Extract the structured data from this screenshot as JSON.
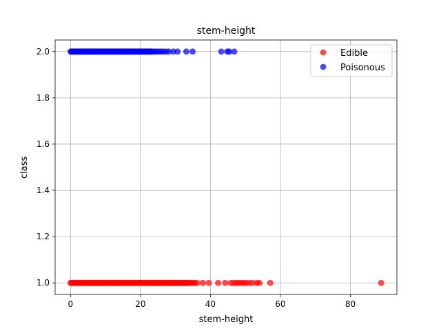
{
  "chart_data": {
    "type": "scatter",
    "title": "stem-height",
    "xlabel": "stem-height",
    "ylabel": "class",
    "xlim": [
      -4.4,
      93.3
    ],
    "ylim": [
      0.95,
      2.05
    ],
    "xticks": [
      0,
      20,
      40,
      60,
      80
    ],
    "xtick_labels": [
      "0",
      "20",
      "40",
      "60",
      "80"
    ],
    "yticks": [
      1.0,
      1.2,
      1.4,
      1.6,
      1.8,
      2.0
    ],
    "ytick_labels": [
      "1.0",
      "1.2",
      "1.4",
      "1.6",
      "1.8",
      "2.0"
    ],
    "grid": true,
    "legend_position": "upper right",
    "series": [
      {
        "name": "Edible",
        "color": "#ff0000",
        "y": 1.0,
        "x": [
          0,
          0.3,
          0.6,
          0.9,
          1.2,
          1.5,
          1.8,
          2.1,
          2.4,
          2.7,
          3.0,
          3.3,
          3.6,
          3.9,
          4.2,
          4.5,
          4.8,
          5.1,
          5.4,
          5.7,
          6.0,
          6.3,
          6.6,
          6.9,
          7.2,
          7.5,
          7.8,
          8.1,
          8.4,
          8.7,
          9.0,
          9.3,
          9.6,
          9.9,
          10.2,
          10.5,
          10.8,
          11.1,
          11.4,
          11.7,
          12.0,
          12.3,
          12.6,
          12.9,
          13.2,
          13.5,
          13.8,
          14.1,
          14.4,
          14.7,
          15.0,
          15.3,
          15.6,
          15.9,
          16.2,
          16.5,
          16.8,
          17.1,
          17.4,
          17.7,
          18.0,
          18.3,
          18.6,
          18.9,
          19.2,
          19.5,
          19.8,
          20.1,
          20.4,
          20.7,
          21.0,
          21.3,
          21.6,
          21.9,
          22.2,
          22.5,
          22.8,
          23.1,
          23.4,
          23.7,
          24.0,
          24.3,
          24.6,
          24.9,
          25.2,
          25.5,
          25.8,
          26.1,
          26.4,
          26.7,
          27.0,
          27.3,
          27.6,
          27.9,
          28.2,
          28.5,
          28.8,
          29.1,
          29.4,
          29.7,
          30.0,
          30.3,
          30.6,
          30.9,
          31.2,
          31.5,
          31.8,
          32.1,
          32.4,
          32.7,
          33.0,
          33.3,
          33.6,
          34.0,
          34.5,
          35.0,
          35.5,
          36.2,
          37.8,
          39.5,
          42.2,
          44.2,
          45.8,
          46.6,
          47.3,
          48.0,
          48.7,
          49.4,
          50.1,
          51.0,
          52.0,
          53.2,
          54.0,
          57.1,
          88.8
        ]
      },
      {
        "name": "Poisonous",
        "color": "#0000ff",
        "y": 2.0,
        "x": [
          0,
          0.3,
          0.6,
          0.9,
          1.2,
          1.5,
          1.8,
          2.1,
          2.4,
          2.7,
          3.0,
          3.3,
          3.6,
          3.9,
          4.2,
          4.5,
          4.8,
          5.1,
          5.4,
          5.7,
          6.0,
          6.3,
          6.6,
          6.9,
          7.2,
          7.5,
          7.8,
          8.1,
          8.4,
          8.7,
          9.0,
          9.3,
          9.6,
          9.9,
          10.2,
          10.5,
          10.8,
          11.1,
          11.4,
          11.7,
          12.0,
          12.3,
          12.6,
          12.9,
          13.2,
          13.5,
          13.8,
          14.1,
          14.4,
          14.7,
          15.0,
          15.3,
          15.6,
          15.9,
          16.2,
          16.5,
          16.8,
          17.1,
          17.4,
          17.7,
          18.0,
          18.3,
          18.6,
          18.9,
          19.2,
          19.5,
          19.8,
          20.1,
          20.4,
          20.7,
          21.0,
          21.3,
          21.6,
          21.9,
          22.2,
          22.5,
          22.8,
          23.1,
          23.5,
          24.0,
          24.6,
          25.2,
          25.9,
          26.5,
          27.3,
          28.1,
          29.4,
          30.6,
          33.1,
          34.9,
          43.1,
          44.8,
          45.4,
          46.8
        ]
      }
    ]
  }
}
